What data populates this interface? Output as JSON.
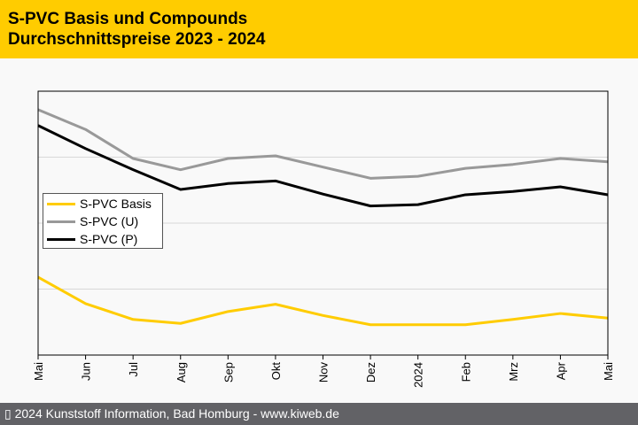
{
  "header": {
    "title_line1": "S-PVC Basis und Compounds",
    "title_line2": "Durchschnittspreise 2023 - 2024"
  },
  "footer": {
    "text": "▯ 2024 Kunststoff Information, Bad Homburg - www.kiweb.de"
  },
  "chart_data": {
    "type": "line",
    "title": "S-PVC Basis und Compounds Durchschnittspreise 2023 - 2024",
    "xlabel": "",
    "ylabel": "",
    "x": [
      "Mai",
      "Jun",
      "Jul",
      "Aug",
      "Sep",
      "Okt",
      "Nov",
      "Dez",
      "2024",
      "Feb",
      "Mrz",
      "Apr",
      "Mai"
    ],
    "ylim": [
      0,
      4
    ],
    "grid": true,
    "legend_position": "center-left",
    "series": [
      {
        "name": "S-PVC Basis",
        "color": "#ffcc00",
        "values": [
          1.18,
          0.78,
          0.54,
          0.48,
          0.66,
          0.77,
          0.6,
          0.46,
          0.46,
          0.46,
          0.54,
          0.63,
          0.56
        ]
      },
      {
        "name": "S-PVC (U)",
        "color": "#999999",
        "values": [
          3.72,
          3.42,
          2.98,
          2.81,
          2.98,
          3.02,
          2.85,
          2.68,
          2.71,
          2.83,
          2.89,
          2.98,
          2.93
        ]
      },
      {
        "name": "S-PVC (P)",
        "color": "#000000",
        "values": [
          3.48,
          3.13,
          2.81,
          2.51,
          2.6,
          2.64,
          2.44,
          2.26,
          2.28,
          2.43,
          2.48,
          2.55,
          2.43
        ]
      }
    ]
  }
}
